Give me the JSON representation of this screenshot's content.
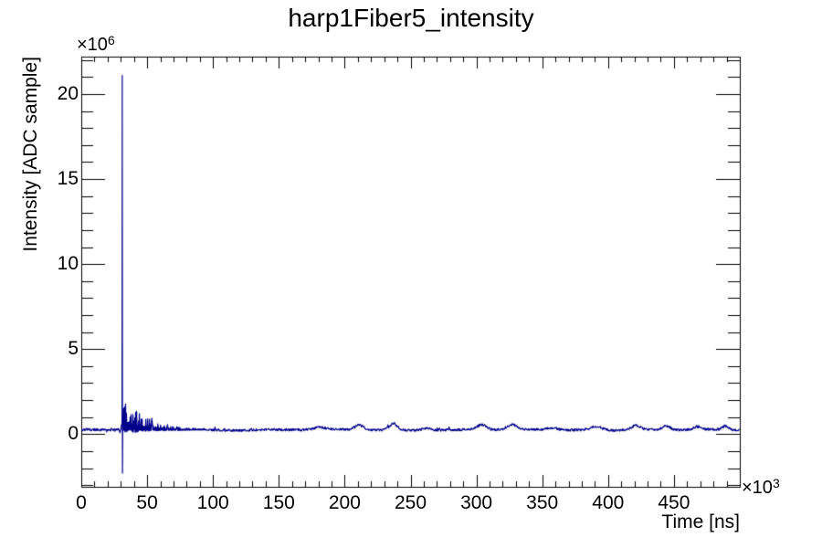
{
  "title": "harp1Fiber5_intensity",
  "axes": {
    "x": {
      "title": "Time [ns]",
      "exponent_base": "×10",
      "exponent": "3",
      "min": 0,
      "max": 500,
      "major_tick_step": 50,
      "minor_tick_step": 10,
      "tick_values": [
        0,
        50,
        100,
        150,
        200,
        250,
        300,
        350,
        400,
        450
      ],
      "tick_labels": [
        "0",
        "50",
        "100",
        "150",
        "200",
        "250",
        "300",
        "350",
        "400",
        "450"
      ]
    },
    "y": {
      "title": "Intensity [ADC sample]",
      "exponent_base": "×10",
      "exponent": "6",
      "min": -3.1,
      "max": 22.2,
      "major_tick_step": 5,
      "minor_tick_step": 1,
      "tick_values": [
        0,
        5,
        10,
        15,
        20
      ],
      "tick_labels": [
        "0",
        "5",
        "10",
        "15",
        "20"
      ]
    }
  },
  "chart_data": {
    "type": "line",
    "title": "harp1Fiber5_intensity",
    "xlabel": "Time [ns]",
    "ylabel": "Intensity [ADC sample]",
    "x_units": "10^3 ns",
    "y_units": "10^6 ADC counts",
    "xlim": [
      0,
      500
    ],
    "ylim": [
      -3.1,
      22.2
    ],
    "grid": false,
    "legend": "none",
    "line_color": "#00008b",
    "frame_color": "#000000",
    "background_color": "#ffffff",
    "approx_waveform": [
      [
        0,
        0.25
      ],
      [
        10,
        0.25
      ],
      [
        20,
        0.25
      ],
      [
        29,
        0.2
      ],
      [
        30.5,
        0.45
      ],
      [
        31.1,
        21.1
      ],
      [
        31.3,
        -2.3
      ],
      [
        32,
        2.2
      ],
      [
        35,
        1.9
      ],
      [
        40,
        1.4
      ],
      [
        45,
        1.0
      ],
      [
        50,
        0.75
      ],
      [
        55,
        0.6
      ],
      [
        60,
        0.5
      ],
      [
        70,
        0.38
      ],
      [
        80,
        0.32
      ],
      [
        90,
        0.3
      ],
      [
        100,
        0.27
      ],
      [
        120,
        0.26
      ],
      [
        150,
        0.27
      ],
      [
        181,
        0.37
      ],
      [
        211,
        0.53
      ],
      [
        237,
        0.63
      ],
      [
        262,
        0.37
      ],
      [
        280,
        0.27
      ],
      [
        304,
        0.55
      ],
      [
        327,
        0.53
      ],
      [
        358,
        0.37
      ],
      [
        391,
        0.47
      ],
      [
        421,
        0.51
      ],
      [
        444,
        0.47
      ],
      [
        468,
        0.43
      ],
      [
        489,
        0.45
      ],
      [
        497,
        0.3
      ]
    ],
    "signal": {
      "baseline_level": 0.25,
      "baseline_noise": 0.07,
      "spike": {
        "time": 31.1,
        "peak": 21.1,
        "undershoot": -2.3
      },
      "ringdown": {
        "start": 31.45,
        "end": 95,
        "amplitude": 2.2,
        "tau": 15
      },
      "bumps": [
        {
          "x": 29.3,
          "h": -0.12,
          "w": 0.8
        },
        {
          "x": 30.7,
          "h": 0.3,
          "w": 0.5
        },
        {
          "x": 181,
          "h": 0.12,
          "w": 6
        },
        {
          "x": 211,
          "h": 0.28,
          "w": 5
        },
        {
          "x": 237,
          "h": 0.38,
          "w": 4
        },
        {
          "x": 262,
          "h": 0.12,
          "w": 5
        },
        {
          "x": 304,
          "h": 0.3,
          "w": 5
        },
        {
          "x": 327,
          "h": 0.28,
          "w": 5
        },
        {
          "x": 358,
          "h": 0.12,
          "w": 6
        },
        {
          "x": 391,
          "h": 0.22,
          "w": 6
        },
        {
          "x": 421,
          "h": 0.26,
          "w": 5
        },
        {
          "x": 444,
          "h": 0.22,
          "w": 4
        },
        {
          "x": 468,
          "h": 0.18,
          "w": 4
        },
        {
          "x": 489,
          "h": 0.2,
          "w": 3
        }
      ]
    }
  }
}
